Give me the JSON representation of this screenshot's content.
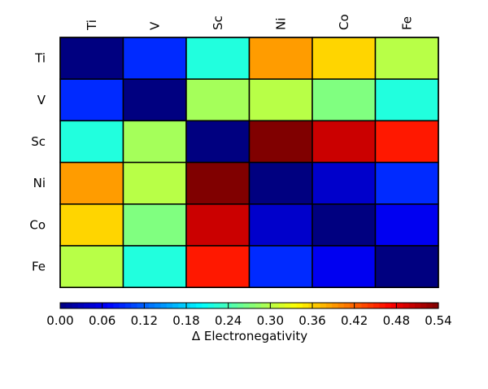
{
  "chart_data": {
    "type": "heatmap",
    "title": "",
    "x_categories": [
      "Ti",
      "V",
      "Sc",
      "Ni",
      "Co",
      "Fe"
    ],
    "y_categories": [
      "Ti",
      "V",
      "Sc",
      "Ni",
      "Co",
      "Fe"
    ],
    "values": [
      [
        0.0,
        0.09,
        0.22,
        0.39,
        0.36,
        0.3
      ],
      [
        0.09,
        0.0,
        0.29,
        0.3,
        0.27,
        0.22
      ],
      [
        0.22,
        0.29,
        0.0,
        0.54,
        0.5,
        0.46
      ],
      [
        0.39,
        0.3,
        0.54,
        0.0,
        0.04,
        0.09
      ],
      [
        0.36,
        0.27,
        0.5,
        0.04,
        0.0,
        0.06
      ],
      [
        0.3,
        0.22,
        0.46,
        0.09,
        0.06,
        0.0
      ]
    ],
    "colorbar": {
      "label": "Δ Electronegativity",
      "range": [
        0.0,
        0.54
      ],
      "ticks": [
        "0.00",
        "0.06",
        "0.12",
        "0.18",
        "0.24",
        "0.30",
        "0.36",
        "0.42",
        "0.48",
        "0.54"
      ],
      "orientation": "horizontal",
      "placement": "bottom",
      "colormap": "jet"
    },
    "x_tick_rotation": "vertical",
    "x_tick_placement": "top",
    "grid": false
  }
}
